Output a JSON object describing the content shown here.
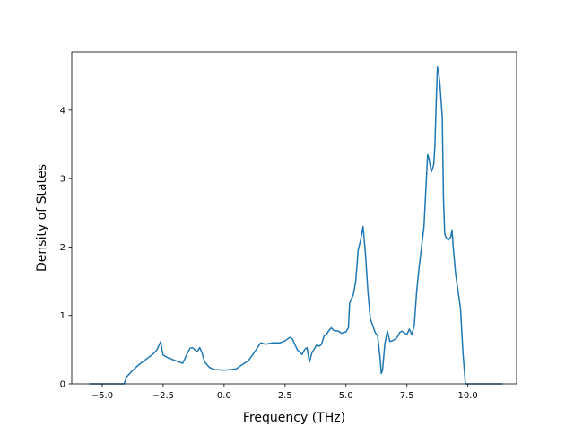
{
  "chart_data": {
    "type": "line",
    "title": "",
    "xlabel": "Frequency (THz)",
    "ylabel": "Density of States",
    "xlim": [
      -6.25,
      12.0
    ],
    "ylim": [
      0,
      4.85
    ],
    "xticks": [
      -5.0,
      -2.5,
      0.0,
      2.5,
      5.0,
      7.5,
      10.0
    ],
    "xtick_labels": [
      "−5.0",
      "−2.5",
      "0.0",
      "2.5",
      "5.0",
      "7.5",
      "10.0"
    ],
    "yticks": [
      0,
      1,
      2,
      3,
      4
    ],
    "ytick_labels": [
      "0",
      "1",
      "2",
      "3",
      "4"
    ],
    "grid": false,
    "legend": "none",
    "series": [
      {
        "color": "#1f77b4",
        "x": [
          -5.5,
          -4.1,
          -4.0,
          -3.8,
          -3.5,
          -3.2,
          -2.9,
          -2.75,
          -2.6,
          -2.55,
          -2.5,
          -2.3,
          -2.0,
          -1.7,
          -1.5,
          -1.4,
          -1.3,
          -1.1,
          -1.0,
          -0.9,
          -0.8,
          -0.6,
          -0.4,
          0.0,
          0.3,
          0.5,
          0.7,
          1.0,
          1.2,
          1.5,
          1.7,
          2.0,
          2.3,
          2.5,
          2.7,
          2.8,
          2.9,
          3.0,
          3.2,
          3.3,
          3.4,
          3.5,
          3.6,
          3.8,
          3.9,
          4.0,
          4.1,
          4.2,
          4.3,
          4.4,
          4.5,
          4.7,
          4.8,
          5.0,
          5.1,
          5.15,
          5.3,
          5.4,
          5.5,
          5.6,
          5.7,
          5.75,
          5.8,
          5.9,
          6.0,
          6.2,
          6.3,
          6.4,
          6.45,
          6.5,
          6.6,
          6.7,
          6.8,
          6.9,
          7.0,
          7.1,
          7.2,
          7.3,
          7.5,
          7.6,
          7.7,
          7.8,
          7.9,
          8.0,
          8.1,
          8.2,
          8.3,
          8.35,
          8.4,
          8.5,
          8.6,
          8.65,
          8.7,
          8.75,
          8.8,
          8.85,
          8.95,
          9.0,
          9.05,
          9.1,
          9.2,
          9.3,
          9.35,
          9.4,
          9.5,
          9.6,
          9.7,
          9.8,
          9.9,
          10.0,
          11.4
        ],
        "y": [
          0.0,
          0.0,
          0.1,
          0.18,
          0.28,
          0.36,
          0.44,
          0.5,
          0.62,
          0.5,
          0.42,
          0.38,
          0.34,
          0.3,
          0.45,
          0.52,
          0.53,
          0.47,
          0.53,
          0.45,
          0.32,
          0.24,
          0.21,
          0.2,
          0.21,
          0.22,
          0.27,
          0.34,
          0.44,
          0.6,
          0.58,
          0.6,
          0.6,
          0.63,
          0.68,
          0.66,
          0.58,
          0.5,
          0.43,
          0.5,
          0.53,
          0.32,
          0.45,
          0.57,
          0.55,
          0.58,
          0.7,
          0.72,
          0.78,
          0.82,
          0.78,
          0.77,
          0.74,
          0.76,
          0.82,
          1.18,
          1.3,
          1.5,
          1.95,
          2.1,
          2.3,
          2.1,
          1.9,
          1.35,
          0.95,
          0.75,
          0.7,
          0.38,
          0.15,
          0.2,
          0.6,
          0.77,
          0.62,
          0.63,
          0.65,
          0.68,
          0.75,
          0.77,
          0.72,
          0.8,
          0.72,
          0.85,
          1.35,
          1.7,
          2.0,
          2.3,
          3.0,
          3.35,
          3.3,
          3.1,
          3.2,
          3.5,
          4.1,
          4.63,
          4.55,
          4.4,
          3.9,
          2.7,
          2.2,
          2.14,
          2.1,
          2.15,
          2.25,
          2.0,
          1.6,
          1.35,
          1.1,
          0.45,
          0.0,
          0.0,
          0.0
        ]
      }
    ]
  }
}
